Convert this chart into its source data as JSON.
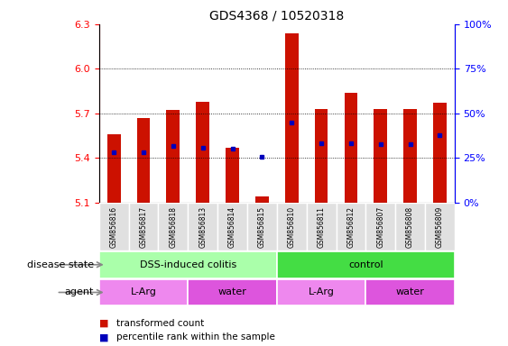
{
  "title": "GDS4368 / 10520318",
  "samples": [
    "GSM856816",
    "GSM856817",
    "GSM856818",
    "GSM856813",
    "GSM856814",
    "GSM856815",
    "GSM856810",
    "GSM856811",
    "GSM856812",
    "GSM856807",
    "GSM856808",
    "GSM856809"
  ],
  "red_values": [
    5.56,
    5.67,
    5.72,
    5.78,
    5.47,
    5.14,
    6.24,
    5.73,
    5.84,
    5.73,
    5.73,
    5.77
  ],
  "blue_values": [
    5.44,
    5.44,
    5.48,
    5.47,
    5.46,
    5.41,
    5.64,
    5.5,
    5.5,
    5.49,
    5.49,
    5.55
  ],
  "ymin": 5.1,
  "ymax": 6.3,
  "yticks": [
    5.1,
    5.4,
    5.7,
    6.0,
    6.3
  ],
  "right_yticks": [
    0,
    25,
    50,
    75,
    100
  ],
  "right_yticklabels": [
    "0%",
    "25%",
    "50%",
    "75%",
    "100%"
  ],
  "disease_state_groups": [
    {
      "label": "DSS-induced colitis",
      "start": 0,
      "end": 6,
      "color": "#aaffaa"
    },
    {
      "label": "control",
      "start": 6,
      "end": 12,
      "color": "#44dd44"
    }
  ],
  "agent_groups": [
    {
      "label": "L-Arg",
      "start": 0,
      "end": 3,
      "color": "#ee88ee"
    },
    {
      "label": "water",
      "start": 3,
      "end": 6,
      "color": "#dd55dd"
    },
    {
      "label": "L-Arg",
      "start": 6,
      "end": 9,
      "color": "#ee88ee"
    },
    {
      "label": "water",
      "start": 9,
      "end": 12,
      "color": "#dd55dd"
    }
  ],
  "bar_color": "#cc1100",
  "dot_color": "#0000bb",
  "bar_width": 0.45,
  "bar_bottom": 5.1,
  "label_left_disease": "disease state",
  "label_left_agent": "agent",
  "legend_items": [
    {
      "color": "#cc1100",
      "label": "transformed count"
    },
    {
      "color": "#0000bb",
      "label": "percentile rank within the sample"
    }
  ]
}
